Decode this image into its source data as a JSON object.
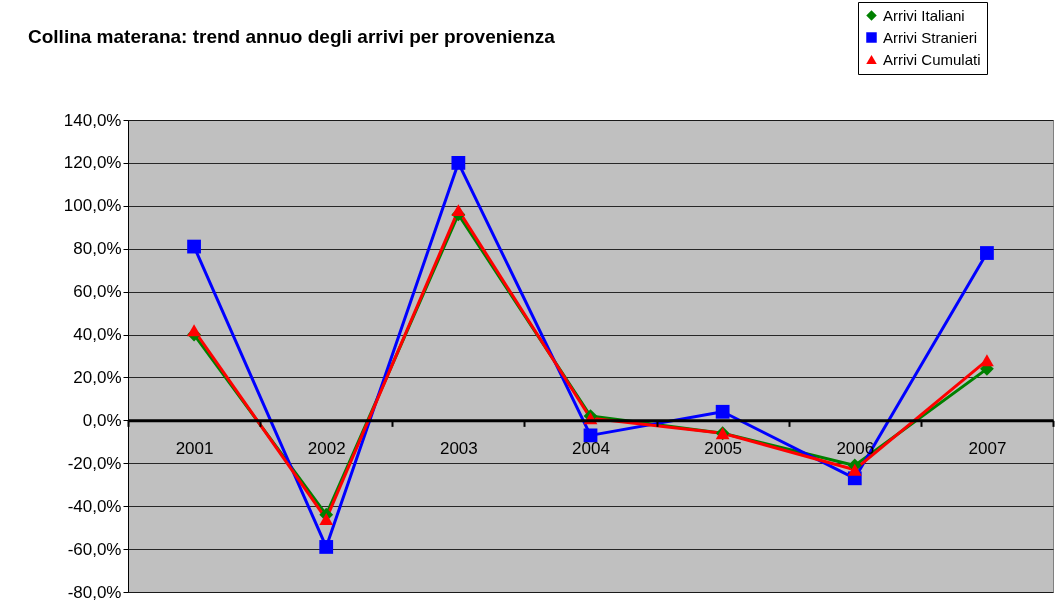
{
  "chart_data": {
    "type": "line",
    "title": "Collina materana: trend annuo degli arrivi per provenienza",
    "categories": [
      "2001",
      "2002",
      "2003",
      "2004",
      "2005",
      "2006",
      "2007"
    ],
    "series": [
      {
        "name": "Arrivi Italiani",
        "color": "#008000",
        "marker": "diamond",
        "values": [
          40,
          -44,
          96,
          2,
          -6,
          -21,
          24
        ]
      },
      {
        "name": "Arrivi Stranieri",
        "color": "#0000ff",
        "marker": "square",
        "values": [
          81,
          -59,
          120,
          -7,
          4,
          -27,
          78
        ]
      },
      {
        "name": "Arrivi Cumulati",
        "color": "#ff0000",
        "marker": "triangle",
        "values": [
          42,
          -46,
          98,
          1,
          -6,
          -23,
          28
        ]
      }
    ],
    "ylim": [
      -80,
      140
    ],
    "yticks": [
      {
        "value": -80,
        "label": "-80,0%"
      },
      {
        "value": -60,
        "label": "-60,0%"
      },
      {
        "value": -40,
        "label": "-40,0%"
      },
      {
        "value": -20,
        "label": "-20,0%"
      },
      {
        "value": 0,
        "label": "0,0%"
      },
      {
        "value": 20,
        "label": "20,0%"
      },
      {
        "value": 40,
        "label": "40,0%"
      },
      {
        "value": 60,
        "label": "60,0%"
      },
      {
        "value": 80,
        "label": "80,0%"
      },
      {
        "value": 100,
        "label": "100,0%"
      },
      {
        "value": 120,
        "label": "120,0%"
      },
      {
        "value": 140,
        "label": "140,0%"
      }
    ],
    "grid": "y",
    "legend": "top right",
    "line_style": "solid"
  }
}
